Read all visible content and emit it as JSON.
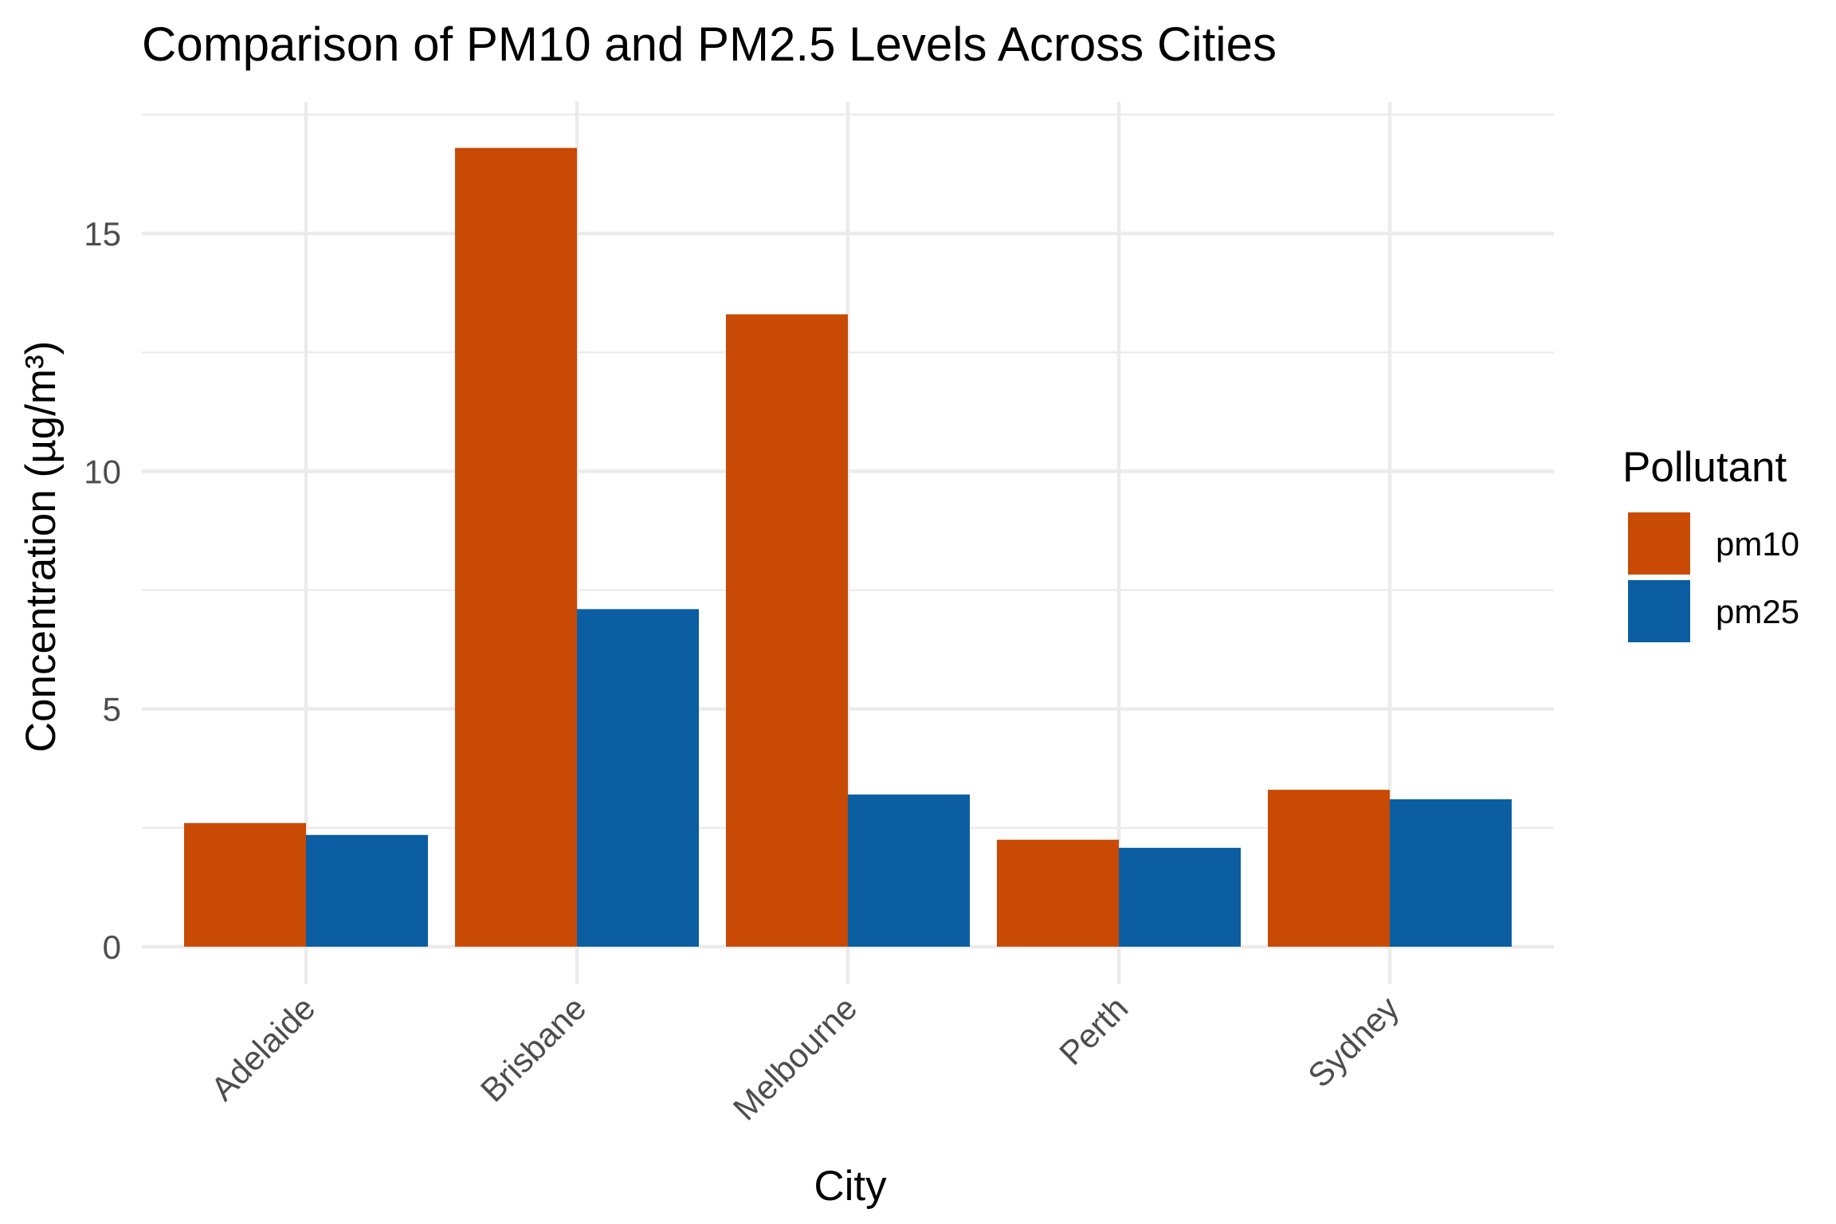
{
  "chart_data": {
    "type": "bar",
    "title": "Comparison of PM10 and PM2.5 Levels Across Cities",
    "xlabel": "City",
    "ylabel": "Concentration (µg/m³)",
    "categories": [
      "Adelaide",
      "Brisbane",
      "Melbourne",
      "Perth",
      "Sydney"
    ],
    "series": [
      {
        "name": "pm10",
        "color": "#C84A05",
        "values": [
          2.6,
          16.8,
          13.3,
          2.25,
          3.3
        ]
      },
      {
        "name": "pm25",
        "color": "#0A5EA1",
        "values": [
          2.35,
          7.1,
          3.2,
          2.08,
          3.1
        ]
      }
    ],
    "ylim": [
      0,
      17.6
    ],
    "yticks": [
      0,
      5,
      10,
      15
    ],
    "ytick_labels": [
      "0",
      "5",
      "10",
      "15"
    ],
    "legend": {
      "title": "Pollutant",
      "placement": "right"
    },
    "grid": true,
    "x_tick_rotation": 45
  }
}
